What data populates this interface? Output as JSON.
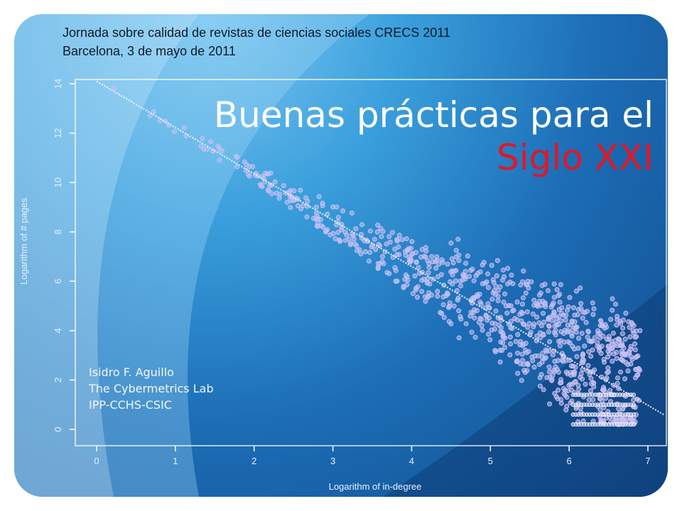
{
  "header": {
    "line1": "Jornada sobre calidad de revistas de ciencias sociales CRECS 2011",
    "line2": "Barcelona, 3 de mayo de 2011"
  },
  "title": {
    "line1": "Buenas prácticas para el",
    "line2": "Siglo XXI"
  },
  "authors": {
    "name": "Isidro F. Aguillo",
    "lab": "The Cybermetrics Lab",
    "institution": "IPP-CCHS-CSIC"
  },
  "chart_data": {
    "type": "scatter",
    "xlabel": "Logarithm of in-degree",
    "ylabel": "Logarithm of # pages",
    "x_ticks": [
      "0",
      "1",
      "2",
      "3",
      "4",
      "5",
      "6",
      "7"
    ],
    "y_ticks": [
      "0",
      "2",
      "4",
      "6",
      "8",
      "10",
      "12",
      "14"
    ],
    "xlim": [
      0,
      7
    ],
    "ylim": [
      0,
      14
    ],
    "fit_line": {
      "x": [
        0,
        7.2
      ],
      "y": [
        14.1,
        0.6
      ]
    },
    "point_color": "#c8c0f4",
    "line_color": "#ffffff"
  },
  "colors": {
    "title_main": "#ffffff",
    "title_accent": "#e01826",
    "header_text": "#101a28"
  }
}
